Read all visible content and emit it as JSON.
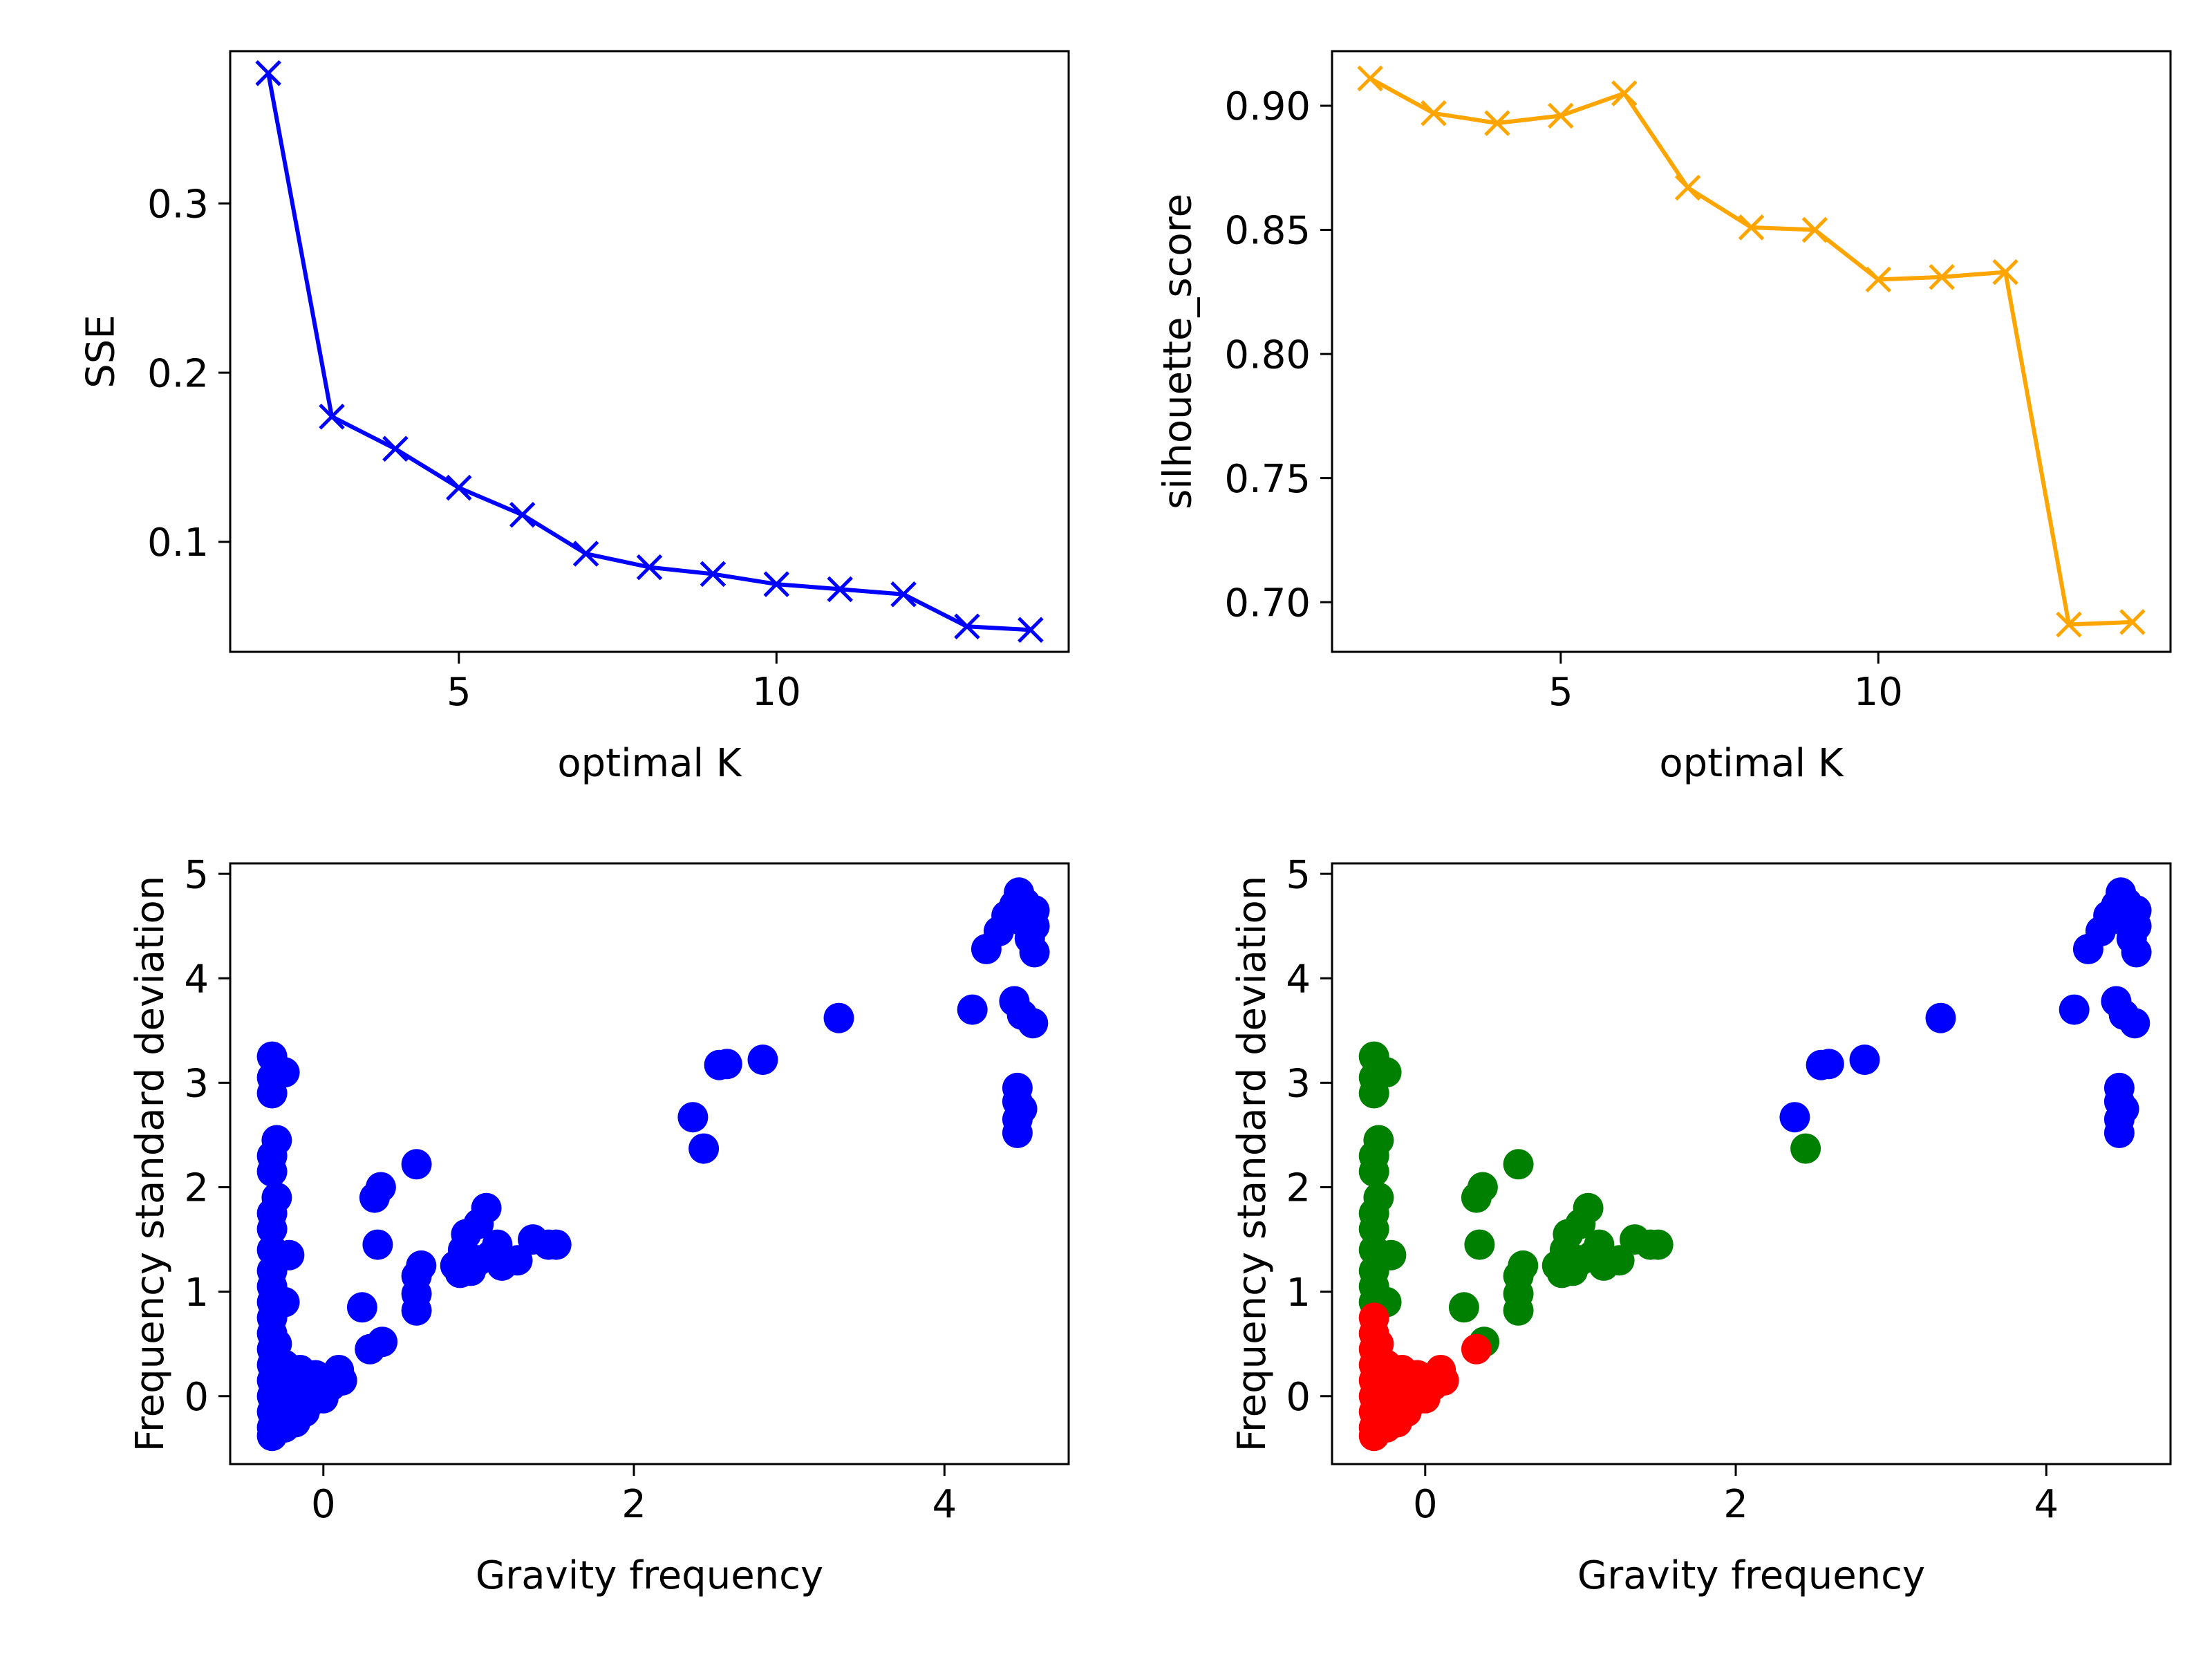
{
  "chart_data": [
    {
      "type": "line",
      "x": [
        2,
        3,
        4,
        5,
        6,
        7,
        8,
        9,
        10,
        11,
        12,
        13,
        14
      ],
      "series": [
        {
          "color": "#0000ff",
          "marker": "x",
          "values": [
            0.377,
            0.174,
            0.155,
            0.132,
            0.116,
            0.093,
            0.085,
            0.081,
            0.075,
            0.072,
            0.069,
            0.05,
            0.048
          ]
        }
      ],
      "title": "",
      "xlabel": "optimal K",
      "ylabel": "SSE",
      "xlim": [
        1.4,
        14.6
      ],
      "ylim": [
        0.035,
        0.39
      ],
      "xticks": [
        5,
        10
      ],
      "xtick_labels": [
        "5",
        "10"
      ],
      "yticks": [
        0.1,
        0.2,
        0.3
      ],
      "ytick_labels": [
        "0.1",
        "0.2",
        "0.3"
      ],
      "grid": false
    },
    {
      "type": "line",
      "x": [
        2,
        3,
        4,
        5,
        6,
        7,
        8,
        9,
        10,
        11,
        12,
        13,
        14
      ],
      "series": [
        {
          "color": "#ffa500",
          "marker": "x",
          "values": [
            0.911,
            0.897,
            0.893,
            0.896,
            0.905,
            0.867,
            0.851,
            0.85,
            0.83,
            0.831,
            0.833,
            0.691,
            0.692
          ]
        }
      ],
      "title": "",
      "xlabel": "optimal K",
      "ylabel": "silhouette_score",
      "xlim": [
        1.4,
        14.6
      ],
      "ylim": [
        0.68,
        0.922
      ],
      "xticks": [
        5,
        10
      ],
      "xtick_labels": [
        "5",
        "10"
      ],
      "yticks": [
        0.7,
        0.75,
        0.8,
        0.85,
        0.9
      ],
      "ytick_labels": [
        "0.70",
        "0.75",
        "0.80",
        "0.85",
        "0.90"
      ],
      "grid": false
    },
    {
      "type": "scatter",
      "series": [
        {
          "color": "#0000ff",
          "points": [
            [
              -0.33,
              3.25
            ],
            [
              -0.33,
              3.05
            ],
            [
              -0.33,
              2.9
            ],
            [
              -0.25,
              3.1
            ],
            [
              -0.3,
              2.45
            ],
            [
              -0.33,
              2.3
            ],
            [
              -0.33,
              2.15
            ],
            [
              -0.3,
              1.9
            ],
            [
              -0.33,
              1.75
            ],
            [
              -0.33,
              1.6
            ],
            [
              -0.33,
              1.4
            ],
            [
              -0.22,
              1.35
            ],
            [
              -0.33,
              1.2
            ],
            [
              -0.33,
              1.05
            ],
            [
              -0.33,
              0.9
            ],
            [
              -0.25,
              0.9
            ],
            [
              -0.33,
              0.75
            ],
            [
              -0.33,
              0.6
            ],
            [
              -0.33,
              0.45
            ],
            [
              -0.33,
              0.3
            ],
            [
              -0.33,
              0.15
            ],
            [
              -0.33,
              0.0
            ],
            [
              -0.33,
              -0.15
            ],
            [
              -0.33,
              -0.3
            ],
            [
              -0.33,
              -0.38
            ],
            [
              -0.3,
              0.5
            ],
            [
              -0.25,
              0.3
            ],
            [
              -0.22,
              0.1
            ],
            [
              -0.2,
              -0.1
            ],
            [
              -0.15,
              0.25
            ],
            [
              -0.1,
              0.1
            ],
            [
              -0.05,
              0.0
            ],
            [
              -0.12,
              -0.15
            ],
            [
              -0.25,
              -0.3
            ],
            [
              -0.18,
              -0.25
            ],
            [
              -0.05,
              0.2
            ],
            [
              0.0,
              -0.02
            ],
            [
              0.05,
              0.1
            ],
            [
              0.1,
              0.25
            ],
            [
              0.12,
              0.15
            ],
            [
              -0.28,
              0.15
            ],
            [
              -0.2,
              0.2
            ],
            [
              -0.08,
              -0.05
            ],
            [
              0.25,
              0.85
            ],
            [
              0.3,
              0.45
            ],
            [
              0.38,
              0.52
            ],
            [
              0.35,
              1.45
            ],
            [
              0.33,
              1.9
            ],
            [
              0.37,
              2.0
            ],
            [
              0.6,
              2.22
            ],
            [
              0.6,
              0.82
            ],
            [
              0.6,
              0.98
            ],
            [
              0.6,
              1.15
            ],
            [
              0.63,
              1.25
            ],
            [
              0.85,
              1.25
            ],
            [
              0.9,
              1.4
            ],
            [
              0.92,
              1.55
            ],
            [
              0.95,
              1.2
            ],
            [
              1.0,
              1.65
            ],
            [
              1.05,
              1.8
            ],
            [
              1.08,
              1.35
            ],
            [
              1.12,
              1.45
            ],
            [
              1.15,
              1.25
            ],
            [
              1.25,
              1.3
            ],
            [
              1.35,
              1.5
            ],
            [
              1.45,
              1.45
            ],
            [
              1.5,
              1.45
            ],
            [
              0.88,
              1.18
            ],
            [
              1.0,
              1.3
            ],
            [
              2.38,
              2.67
            ],
            [
              2.45,
              2.37
            ],
            [
              2.55,
              3.17
            ],
            [
              2.6,
              3.18
            ],
            [
              2.83,
              3.22
            ],
            [
              3.32,
              3.62
            ],
            [
              4.18,
              3.7
            ],
            [
              4.27,
              4.28
            ],
            [
              4.35,
              4.45
            ],
            [
              4.4,
              4.6
            ],
            [
              4.45,
              4.7
            ],
            [
              4.48,
              4.82
            ],
            [
              4.52,
              4.72
            ],
            [
              4.5,
              4.55
            ],
            [
              4.55,
              4.38
            ],
            [
              4.58,
              4.25
            ],
            [
              4.58,
              4.5
            ],
            [
              4.58,
              4.65
            ],
            [
              4.45,
              3.78
            ],
            [
              4.5,
              3.65
            ],
            [
              4.57,
              3.57
            ],
            [
              4.47,
              2.95
            ],
            [
              4.47,
              2.82
            ],
            [
              4.47,
              2.65
            ],
            [
              4.47,
              2.52
            ],
            [
              4.5,
              2.75
            ]
          ]
        }
      ],
      "title": "",
      "xlabel": "Gravity frequency",
      "ylabel": "Frequency standard deviation",
      "xlim": [
        -0.6,
        4.8
      ],
      "ylim": [
        -0.65,
        5.1
      ],
      "xticks": [
        0,
        2,
        4
      ],
      "xtick_labels": [
        "0",
        "2",
        "4"
      ],
      "yticks": [
        0,
        1,
        2,
        3,
        4,
        5
      ],
      "ytick_labels": [
        "0",
        "1",
        "2",
        "3",
        "4",
        "5"
      ],
      "grid": false
    },
    {
      "type": "scatter",
      "series": [
        {
          "color": "#008000",
          "points": [
            [
              -0.33,
              3.25
            ],
            [
              -0.33,
              3.05
            ],
            [
              -0.33,
              2.9
            ],
            [
              -0.25,
              3.1
            ],
            [
              -0.3,
              2.45
            ],
            [
              -0.33,
              2.3
            ],
            [
              -0.33,
              2.15
            ],
            [
              -0.3,
              1.9
            ],
            [
              -0.33,
              1.75
            ],
            [
              -0.33,
              1.6
            ],
            [
              -0.33,
              1.4
            ],
            [
              -0.22,
              1.35
            ],
            [
              -0.33,
              1.2
            ],
            [
              -0.33,
              1.05
            ],
            [
              -0.33,
              0.9
            ],
            [
              -0.25,
              0.9
            ],
            [
              0.25,
              0.85
            ],
            [
              0.38,
              0.52
            ],
            [
              0.35,
              1.45
            ],
            [
              0.33,
              1.9
            ],
            [
              0.37,
              2.0
            ],
            [
              0.6,
              2.22
            ],
            [
              0.6,
              0.82
            ],
            [
              0.6,
              0.98
            ],
            [
              0.6,
              1.15
            ],
            [
              0.63,
              1.25
            ],
            [
              0.85,
              1.25
            ],
            [
              0.9,
              1.4
            ],
            [
              0.92,
              1.55
            ],
            [
              0.95,
              1.2
            ],
            [
              1.0,
              1.65
            ],
            [
              1.05,
              1.8
            ],
            [
              1.08,
              1.35
            ],
            [
              1.12,
              1.45
            ],
            [
              1.15,
              1.25
            ],
            [
              1.25,
              1.3
            ],
            [
              1.35,
              1.5
            ],
            [
              1.45,
              1.45
            ],
            [
              1.5,
              1.45
            ],
            [
              0.88,
              1.18
            ],
            [
              1.0,
              1.3
            ],
            [
              2.45,
              2.37
            ]
          ]
        },
        {
          "color": "#ff0000",
          "points": [
            [
              -0.33,
              0.75
            ],
            [
              -0.33,
              0.6
            ],
            [
              -0.33,
              0.45
            ],
            [
              -0.33,
              0.3
            ],
            [
              -0.33,
              0.15
            ],
            [
              -0.33,
              0.0
            ],
            [
              -0.33,
              -0.15
            ],
            [
              -0.33,
              -0.3
            ],
            [
              -0.33,
              -0.38
            ],
            [
              -0.3,
              0.5
            ],
            [
              -0.25,
              0.3
            ],
            [
              -0.22,
              0.1
            ],
            [
              -0.2,
              -0.1
            ],
            [
              -0.15,
              0.25
            ],
            [
              -0.1,
              0.1
            ],
            [
              -0.05,
              0.0
            ],
            [
              -0.12,
              -0.15
            ],
            [
              -0.25,
              -0.3
            ],
            [
              -0.18,
              -0.25
            ],
            [
              -0.05,
              0.2
            ],
            [
              0.0,
              -0.02
            ],
            [
              0.05,
              0.1
            ],
            [
              0.1,
              0.25
            ],
            [
              0.12,
              0.15
            ],
            [
              -0.28,
              0.15
            ],
            [
              -0.2,
              0.2
            ],
            [
              -0.08,
              -0.05
            ],
            [
              0.33,
              0.45
            ]
          ]
        },
        {
          "color": "#0000ff",
          "points": [
            [
              2.38,
              2.67
            ],
            [
              2.55,
              3.17
            ],
            [
              2.6,
              3.18
            ],
            [
              2.83,
              3.22
            ],
            [
              3.32,
              3.62
            ],
            [
              4.18,
              3.7
            ],
            [
              4.27,
              4.28
            ],
            [
              4.35,
              4.45
            ],
            [
              4.4,
              4.6
            ],
            [
              4.45,
              4.7
            ],
            [
              4.48,
              4.82
            ],
            [
              4.52,
              4.72
            ],
            [
              4.5,
              4.55
            ],
            [
              4.55,
              4.38
            ],
            [
              4.58,
              4.25
            ],
            [
              4.58,
              4.5
            ],
            [
              4.58,
              4.65
            ],
            [
              4.45,
              3.78
            ],
            [
              4.5,
              3.65
            ],
            [
              4.57,
              3.57
            ],
            [
              4.47,
              2.95
            ],
            [
              4.47,
              2.82
            ],
            [
              4.47,
              2.65
            ],
            [
              4.47,
              2.52
            ],
            [
              4.5,
              2.75
            ]
          ]
        }
      ],
      "title": "",
      "xlabel": "Gravity frequency",
      "ylabel": "Frequency standard deviation",
      "xlim": [
        -0.6,
        4.8
      ],
      "ylim": [
        -0.65,
        5.1
      ],
      "xticks": [
        0,
        2,
        4
      ],
      "xtick_labels": [
        "0",
        "2",
        "4"
      ],
      "yticks": [
        0,
        1,
        2,
        3,
        4,
        5
      ],
      "ytick_labels": [
        "0",
        "1",
        "2",
        "3",
        "4",
        "5"
      ],
      "grid": false
    }
  ]
}
